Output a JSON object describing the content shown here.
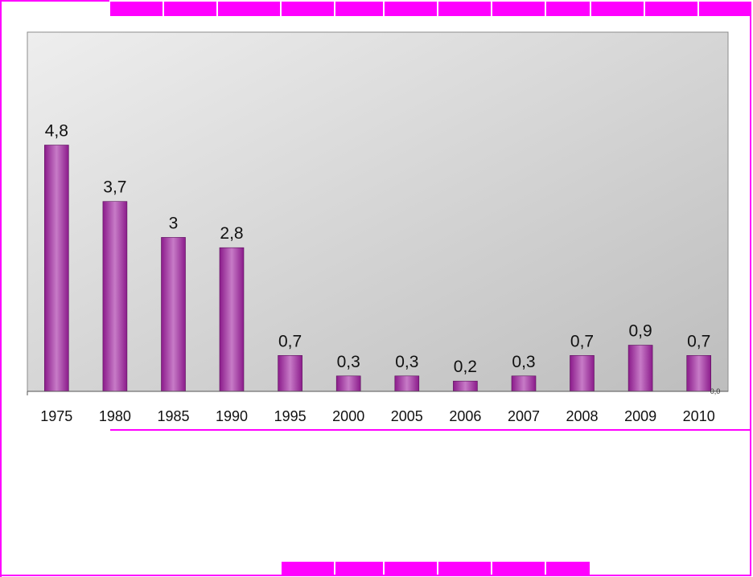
{
  "chart_data": {
    "type": "bar",
    "categories": [
      "1975",
      "1980",
      "1985",
      "1990",
      "1995",
      "2000",
      "2005",
      "2006",
      "2007",
      "2008",
      "2009",
      "2010"
    ],
    "values": [
      4.8,
      3.7,
      3.0,
      2.8,
      0.7,
      0.3,
      0.3,
      0.2,
      0.3,
      0.7,
      0.9,
      0.7
    ],
    "data_labels": [
      "4,8",
      "3,7",
      "3",
      "2,8",
      "0,7",
      "0,3",
      "0,3",
      "0,2",
      "0,3",
      "0,7",
      "0,9",
      "0,7"
    ],
    "axis_label": "0,0",
    "ylim": [
      0,
      7
    ],
    "grid": false,
    "legend": "none",
    "bar_color": "#8b1b8b",
    "bar_highlight": "#c77bc7",
    "plot_background": [
      "#eeeeee",
      "#bdbdbd"
    ],
    "frame_color": "#ff00ff"
  }
}
